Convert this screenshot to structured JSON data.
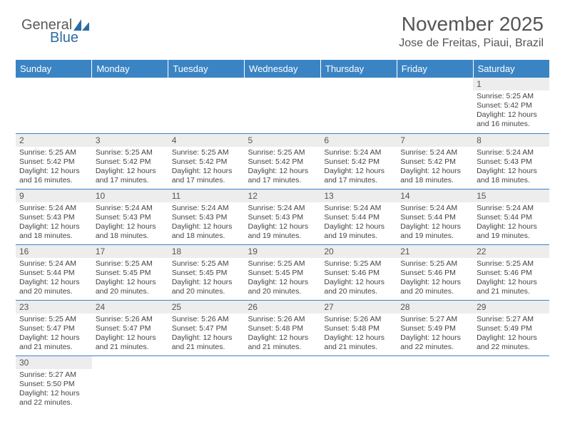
{
  "brand": {
    "part1": "General",
    "part2": "Blue"
  },
  "title": "November 2025",
  "location": "Jose de Freitas, Piaui, Brazil",
  "colors": {
    "header_bg": "#3b84c4",
    "header_text": "#ffffff",
    "daynum_bg": "#ededed",
    "text": "#444444",
    "rule": "#3b84c4",
    "brand_gray": "#5a5a5a",
    "brand_blue": "#2d6ca2"
  },
  "fonts": {
    "title_pt": 28,
    "location_pt": 16,
    "header_pt": 13,
    "daynum_pt": 12,
    "body_pt": 10.5
  },
  "day_headers": [
    "Sunday",
    "Monday",
    "Tuesday",
    "Wednesday",
    "Thursday",
    "Friday",
    "Saturday"
  ],
  "weeks": [
    [
      null,
      null,
      null,
      null,
      null,
      null,
      {
        "n": "1",
        "sunrise": "Sunrise: 5:25 AM",
        "sunset": "Sunset: 5:42 PM",
        "daylight": "Daylight: 12 hours and 16 minutes."
      }
    ],
    [
      {
        "n": "2",
        "sunrise": "Sunrise: 5:25 AM",
        "sunset": "Sunset: 5:42 PM",
        "daylight": "Daylight: 12 hours and 16 minutes."
      },
      {
        "n": "3",
        "sunrise": "Sunrise: 5:25 AM",
        "sunset": "Sunset: 5:42 PM",
        "daylight": "Daylight: 12 hours and 17 minutes."
      },
      {
        "n": "4",
        "sunrise": "Sunrise: 5:25 AM",
        "sunset": "Sunset: 5:42 PM",
        "daylight": "Daylight: 12 hours and 17 minutes."
      },
      {
        "n": "5",
        "sunrise": "Sunrise: 5:25 AM",
        "sunset": "Sunset: 5:42 PM",
        "daylight": "Daylight: 12 hours and 17 minutes."
      },
      {
        "n": "6",
        "sunrise": "Sunrise: 5:24 AM",
        "sunset": "Sunset: 5:42 PM",
        "daylight": "Daylight: 12 hours and 17 minutes."
      },
      {
        "n": "7",
        "sunrise": "Sunrise: 5:24 AM",
        "sunset": "Sunset: 5:42 PM",
        "daylight": "Daylight: 12 hours and 18 minutes."
      },
      {
        "n": "8",
        "sunrise": "Sunrise: 5:24 AM",
        "sunset": "Sunset: 5:43 PM",
        "daylight": "Daylight: 12 hours and 18 minutes."
      }
    ],
    [
      {
        "n": "9",
        "sunrise": "Sunrise: 5:24 AM",
        "sunset": "Sunset: 5:43 PM",
        "daylight": "Daylight: 12 hours and 18 minutes."
      },
      {
        "n": "10",
        "sunrise": "Sunrise: 5:24 AM",
        "sunset": "Sunset: 5:43 PM",
        "daylight": "Daylight: 12 hours and 18 minutes."
      },
      {
        "n": "11",
        "sunrise": "Sunrise: 5:24 AM",
        "sunset": "Sunset: 5:43 PM",
        "daylight": "Daylight: 12 hours and 18 minutes."
      },
      {
        "n": "12",
        "sunrise": "Sunrise: 5:24 AM",
        "sunset": "Sunset: 5:43 PM",
        "daylight": "Daylight: 12 hours and 19 minutes."
      },
      {
        "n": "13",
        "sunrise": "Sunrise: 5:24 AM",
        "sunset": "Sunset: 5:44 PM",
        "daylight": "Daylight: 12 hours and 19 minutes."
      },
      {
        "n": "14",
        "sunrise": "Sunrise: 5:24 AM",
        "sunset": "Sunset: 5:44 PM",
        "daylight": "Daylight: 12 hours and 19 minutes."
      },
      {
        "n": "15",
        "sunrise": "Sunrise: 5:24 AM",
        "sunset": "Sunset: 5:44 PM",
        "daylight": "Daylight: 12 hours and 19 minutes."
      }
    ],
    [
      {
        "n": "16",
        "sunrise": "Sunrise: 5:24 AM",
        "sunset": "Sunset: 5:44 PM",
        "daylight": "Daylight: 12 hours and 20 minutes."
      },
      {
        "n": "17",
        "sunrise": "Sunrise: 5:25 AM",
        "sunset": "Sunset: 5:45 PM",
        "daylight": "Daylight: 12 hours and 20 minutes."
      },
      {
        "n": "18",
        "sunrise": "Sunrise: 5:25 AM",
        "sunset": "Sunset: 5:45 PM",
        "daylight": "Daylight: 12 hours and 20 minutes."
      },
      {
        "n": "19",
        "sunrise": "Sunrise: 5:25 AM",
        "sunset": "Sunset: 5:45 PM",
        "daylight": "Daylight: 12 hours and 20 minutes."
      },
      {
        "n": "20",
        "sunrise": "Sunrise: 5:25 AM",
        "sunset": "Sunset: 5:46 PM",
        "daylight": "Daylight: 12 hours and 20 minutes."
      },
      {
        "n": "21",
        "sunrise": "Sunrise: 5:25 AM",
        "sunset": "Sunset: 5:46 PM",
        "daylight": "Daylight: 12 hours and 20 minutes."
      },
      {
        "n": "22",
        "sunrise": "Sunrise: 5:25 AM",
        "sunset": "Sunset: 5:46 PM",
        "daylight": "Daylight: 12 hours and 21 minutes."
      }
    ],
    [
      {
        "n": "23",
        "sunrise": "Sunrise: 5:25 AM",
        "sunset": "Sunset: 5:47 PM",
        "daylight": "Daylight: 12 hours and 21 minutes."
      },
      {
        "n": "24",
        "sunrise": "Sunrise: 5:26 AM",
        "sunset": "Sunset: 5:47 PM",
        "daylight": "Daylight: 12 hours and 21 minutes."
      },
      {
        "n": "25",
        "sunrise": "Sunrise: 5:26 AM",
        "sunset": "Sunset: 5:47 PM",
        "daylight": "Daylight: 12 hours and 21 minutes."
      },
      {
        "n": "26",
        "sunrise": "Sunrise: 5:26 AM",
        "sunset": "Sunset: 5:48 PM",
        "daylight": "Daylight: 12 hours and 21 minutes."
      },
      {
        "n": "27",
        "sunrise": "Sunrise: 5:26 AM",
        "sunset": "Sunset: 5:48 PM",
        "daylight": "Daylight: 12 hours and 21 minutes."
      },
      {
        "n": "28",
        "sunrise": "Sunrise: 5:27 AM",
        "sunset": "Sunset: 5:49 PM",
        "daylight": "Daylight: 12 hours and 22 minutes."
      },
      {
        "n": "29",
        "sunrise": "Sunrise: 5:27 AM",
        "sunset": "Sunset: 5:49 PM",
        "daylight": "Daylight: 12 hours and 22 minutes."
      }
    ],
    [
      {
        "n": "30",
        "sunrise": "Sunrise: 5:27 AM",
        "sunset": "Sunset: 5:50 PM",
        "daylight": "Daylight: 12 hours and 22 minutes."
      },
      null,
      null,
      null,
      null,
      null,
      null
    ]
  ]
}
